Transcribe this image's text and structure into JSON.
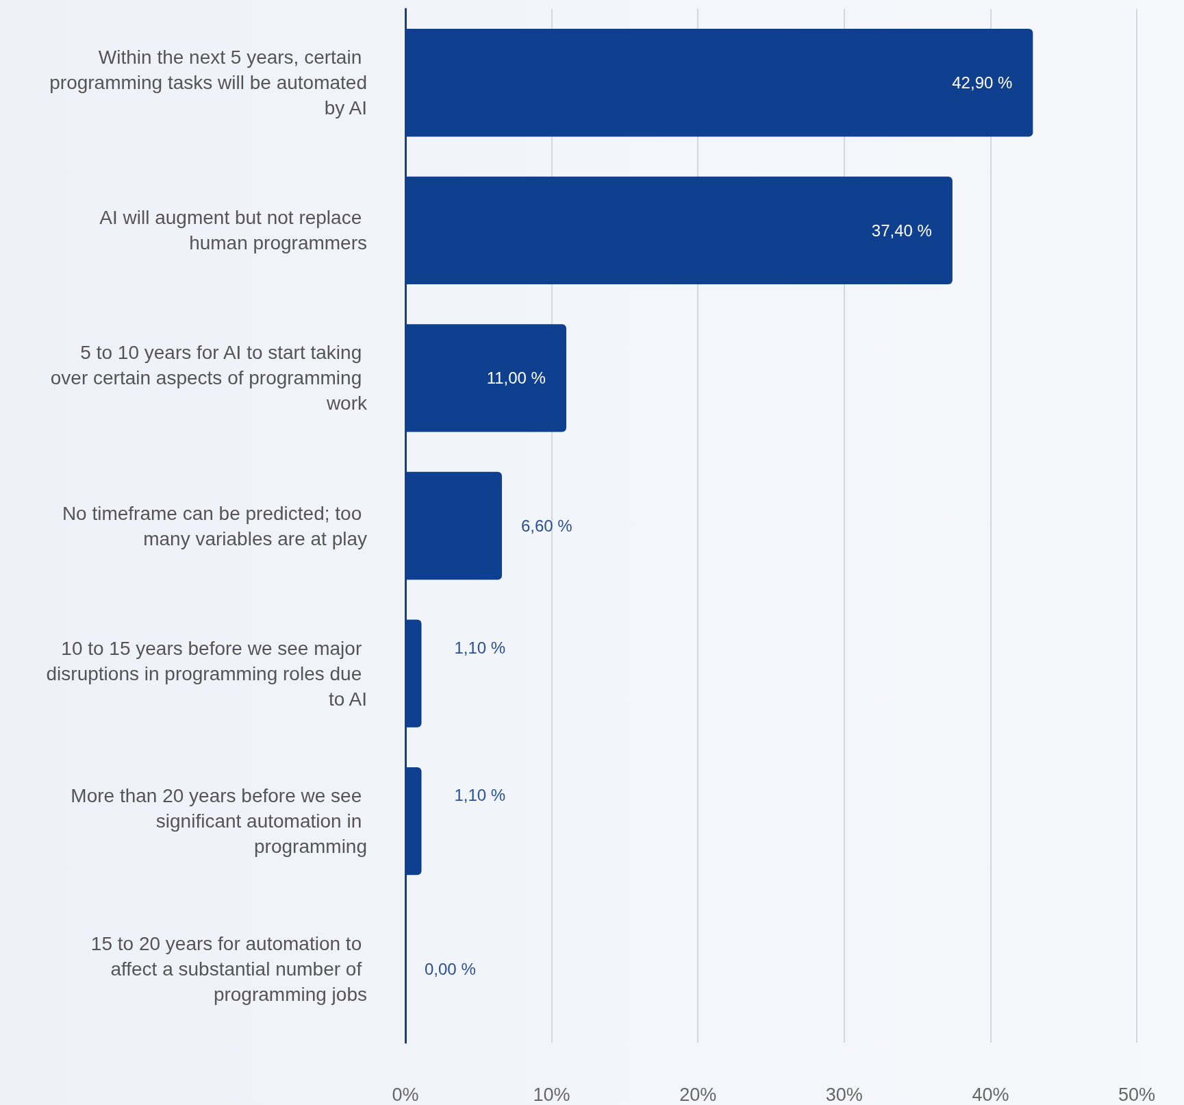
{
  "chart_data": {
    "type": "bar",
    "orientation": "horizontal",
    "categories": [
      "Within the next 5 years, certain programming tasks will be automated by AI",
      "AI will augment but not replace human programmers",
      "5 to 10 years for AI to start taking over certain aspects of programming work",
      "No timeframe can be predicted; too many variables are at play",
      "10 to 15 years before we see major disruptions in programming roles due to AI",
      "More than 20 years before we see significant automation in programming",
      "15 to 20 years for automation to affect a substantial number of programming jobs"
    ],
    "values": [
      42.9,
      37.4,
      11.0,
      6.6,
      1.1,
      1.1,
      0.0
    ],
    "value_labels": [
      "42,90 %",
      "37,40 %",
      "11,00 %",
      "6,60 %",
      "1,10 %",
      "1,10 %",
      "0,00 %"
    ],
    "color": "#0f3f8f",
    "xlim": [
      0,
      50
    ],
    "xticks": [
      {
        "value": 0,
        "label": "0%"
      },
      {
        "value": 10,
        "label": "10%"
      },
      {
        "value": 20,
        "label": "20%"
      },
      {
        "value": 30,
        "label": "30%"
      },
      {
        "value": 40,
        "label": "40%"
      },
      {
        "value": 50,
        "label": "50%"
      }
    ],
    "grid": "x"
  }
}
